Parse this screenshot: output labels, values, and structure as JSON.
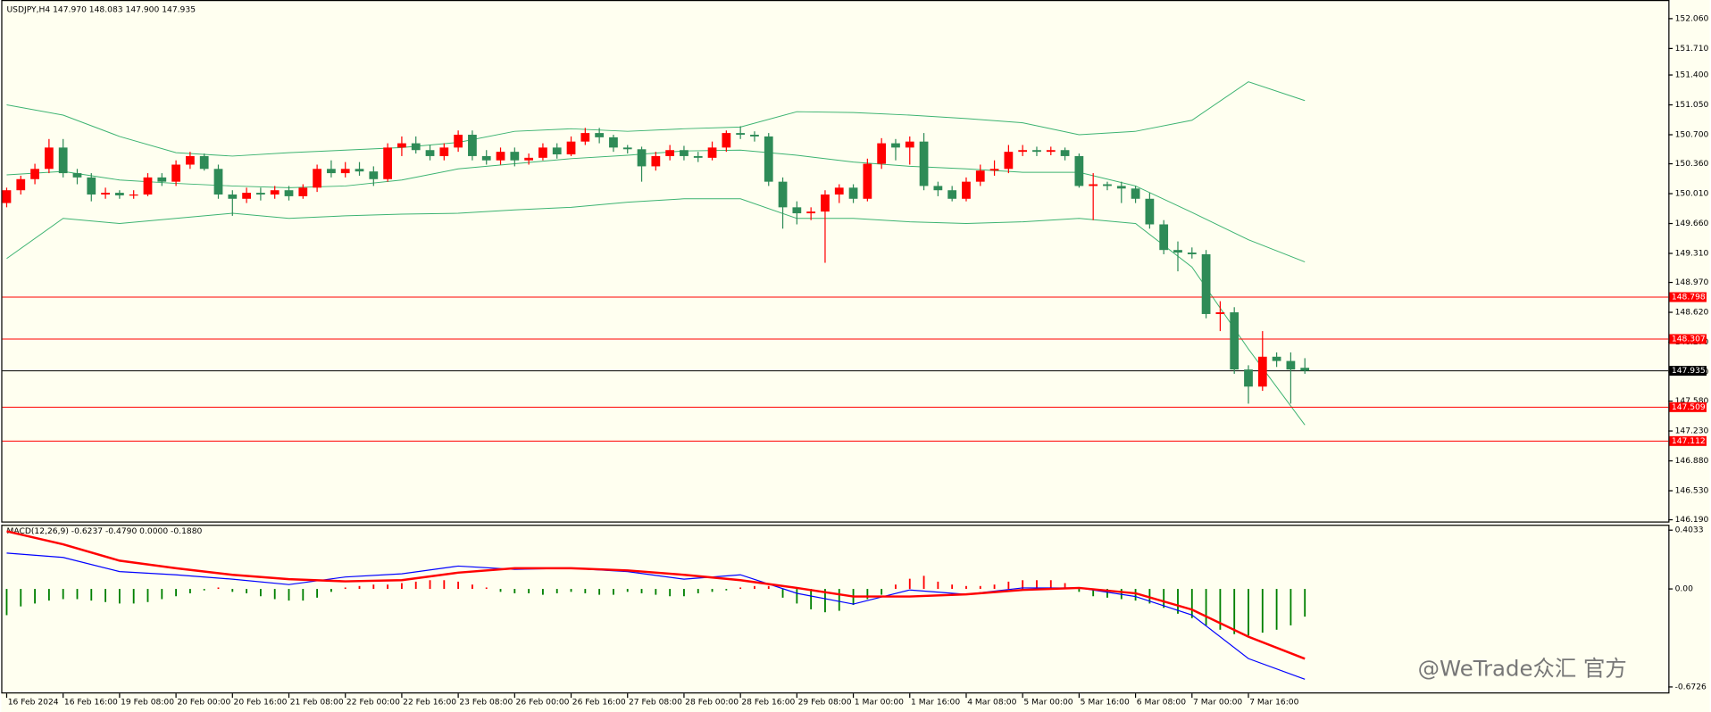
{
  "chart_data": {
    "type": "candlestick",
    "title": "USDJPY,H4  147.970 148.083 147.900 147.935",
    "up_color": "#ff0000",
    "down_color": "#2e8b57",
    "ylim": [
      146.17,
      152.24
    ],
    "yticks": [
      {
        "value": 152.06,
        "label": "152.060"
      },
      {
        "value": 151.71,
        "label": "151.710"
      },
      {
        "value": 151.4,
        "label": "151.400"
      },
      {
        "value": 151.05,
        "label": "151.050"
      },
      {
        "value": 150.7,
        "label": "150.700"
      },
      {
        "value": 150.36,
        "label": "150.360"
      },
      {
        "value": 150.01,
        "label": "150.010"
      },
      {
        "value": 149.66,
        "label": "149.660"
      },
      {
        "value": 149.31,
        "label": "149.310"
      },
      {
        "value": 148.97,
        "label": "148.970"
      },
      {
        "value": 148.62,
        "label": "148.620"
      },
      {
        "value": 148.27,
        "label": "148.270"
      },
      {
        "value": 147.92,
        "label": "147.920"
      },
      {
        "value": 147.58,
        "label": "147.580"
      },
      {
        "value": 147.23,
        "label": "147.230"
      },
      {
        "value": 146.88,
        "label": "146.880"
      },
      {
        "value": 146.53,
        "label": "146.530"
      },
      {
        "value": 146.19,
        "label": "146.190"
      }
    ],
    "x_labels": [
      "16 Feb 2024",
      "16 Feb 16:00",
      "19 Feb 08:00",
      "20 Feb 00:00",
      "20 Feb 16:00",
      "21 Feb 08:00",
      "22 Feb 00:00",
      "22 Feb 16:00",
      "23 Feb 08:00",
      "26 Feb 00:00",
      "26 Feb 16:00",
      "27 Feb 08:00",
      "28 Feb 00:00",
      "28 Feb 16:00",
      "29 Feb 08:00",
      "1 Mar 00:00",
      "1 Mar 16:00",
      "4 Mar 08:00",
      "5 Mar 00:00",
      "5 Mar 16:00",
      "6 Mar 08:00",
      "7 Mar 00:00",
      "7 Mar 16:00"
    ],
    "ohlc": [
      [
        149.9,
        150.08,
        149.85,
        150.05
      ],
      [
        150.05,
        150.22,
        150.0,
        150.18
      ],
      [
        150.18,
        150.36,
        150.12,
        150.3
      ],
      [
        150.3,
        150.65,
        150.25,
        150.55
      ],
      [
        150.55,
        150.65,
        150.2,
        150.25
      ],
      [
        150.25,
        150.3,
        150.12,
        150.2
      ],
      [
        150.2,
        150.25,
        149.92,
        150.0
      ],
      [
        150.0,
        150.08,
        149.95,
        150.02
      ],
      [
        150.02,
        150.05,
        149.95,
        149.99
      ],
      [
        149.99,
        150.05,
        149.95,
        150.0
      ],
      [
        150.0,
        150.25,
        149.98,
        150.2
      ],
      [
        150.2,
        150.25,
        150.1,
        150.15
      ],
      [
        150.15,
        150.4,
        150.1,
        150.35
      ],
      [
        150.35,
        150.5,
        150.3,
        150.45
      ],
      [
        150.45,
        150.48,
        150.28,
        150.3
      ],
      [
        150.3,
        150.35,
        149.95,
        150.0
      ],
      [
        150.0,
        150.05,
        149.75,
        149.95
      ],
      [
        149.95,
        150.08,
        149.9,
        150.02
      ],
      [
        150.02,
        150.08,
        149.93,
        150.0
      ],
      [
        150.0,
        150.1,
        149.95,
        150.05
      ],
      [
        150.05,
        150.1,
        149.93,
        149.98
      ],
      [
        149.98,
        150.12,
        149.95,
        150.08
      ],
      [
        150.08,
        150.35,
        150.03,
        150.3
      ],
      [
        150.3,
        150.4,
        150.2,
        150.25
      ],
      [
        150.25,
        150.38,
        150.2,
        150.3
      ],
      [
        150.3,
        150.38,
        150.22,
        150.27
      ],
      [
        150.27,
        150.33,
        150.1,
        150.18
      ],
      [
        150.18,
        150.6,
        150.15,
        150.55
      ],
      [
        150.55,
        150.68,
        150.45,
        150.6
      ],
      [
        150.6,
        150.68,
        150.48,
        150.52
      ],
      [
        150.52,
        150.58,
        150.4,
        150.45
      ],
      [
        150.45,
        150.6,
        150.4,
        150.55
      ],
      [
        150.55,
        150.75,
        150.5,
        150.7
      ],
      [
        150.7,
        150.75,
        150.4,
        150.45
      ],
      [
        150.45,
        150.52,
        150.35,
        150.4
      ],
      [
        150.4,
        150.55,
        150.35,
        150.5
      ],
      [
        150.5,
        150.55,
        150.33,
        150.4
      ],
      [
        150.4,
        150.48,
        150.35,
        150.43
      ],
      [
        150.43,
        150.6,
        150.4,
        150.55
      ],
      [
        150.55,
        150.6,
        150.42,
        150.47
      ],
      [
        150.47,
        150.68,
        150.45,
        150.62
      ],
      [
        150.62,
        150.78,
        150.58,
        150.72
      ],
      [
        150.72,
        150.78,
        150.6,
        150.67
      ],
      [
        150.67,
        150.7,
        150.5,
        150.55
      ],
      [
        150.55,
        150.58,
        150.48,
        150.53
      ],
      [
        150.53,
        150.56,
        150.15,
        150.33
      ],
      [
        150.33,
        150.5,
        150.28,
        150.45
      ],
      [
        150.45,
        150.58,
        150.4,
        150.52
      ],
      [
        150.52,
        150.57,
        150.4,
        150.45
      ],
      [
        150.45,
        150.5,
        150.38,
        150.43
      ],
      [
        150.43,
        150.62,
        150.4,
        150.55
      ],
      [
        150.55,
        150.75,
        150.5,
        150.72
      ],
      [
        150.72,
        150.8,
        150.65,
        150.7
      ],
      [
        150.7,
        150.74,
        150.62,
        150.68
      ],
      [
        150.68,
        150.72,
        150.1,
        150.15
      ],
      [
        150.15,
        150.2,
        149.6,
        149.85
      ],
      [
        149.85,
        149.92,
        149.65,
        149.78
      ],
      [
        149.78,
        149.85,
        149.7,
        149.8
      ],
      [
        149.8,
        150.05,
        149.2,
        150.0
      ],
      [
        150.0,
        150.12,
        149.9,
        150.08
      ],
      [
        150.08,
        150.12,
        149.9,
        149.95
      ],
      [
        149.95,
        150.42,
        149.92,
        150.36
      ],
      [
        150.36,
        150.66,
        150.3,
        150.6
      ],
      [
        150.6,
        150.65,
        150.4,
        150.55
      ],
      [
        150.55,
        150.68,
        150.35,
        150.62
      ],
      [
        150.62,
        150.72,
        150.05,
        150.1
      ],
      [
        150.1,
        150.15,
        149.98,
        150.05
      ],
      [
        150.05,
        150.1,
        149.92,
        149.95
      ],
      [
        149.95,
        150.2,
        149.92,
        150.15
      ],
      [
        150.15,
        150.35,
        150.1,
        150.28
      ],
      [
        150.28,
        150.4,
        150.22,
        150.3
      ],
      [
        150.3,
        150.58,
        150.25,
        150.5
      ],
      [
        150.5,
        150.58,
        150.45,
        150.52
      ],
      [
        150.52,
        150.56,
        150.45,
        150.5
      ],
      [
        150.5,
        150.56,
        150.46,
        150.52
      ],
      [
        150.52,
        150.55,
        150.4,
        150.45
      ],
      [
        150.45,
        150.48,
        150.08,
        150.1
      ],
      [
        150.1,
        150.25,
        149.7,
        150.12
      ],
      [
        150.12,
        150.15,
        150.05,
        150.1
      ],
      [
        150.1,
        150.15,
        149.9,
        150.07
      ],
      [
        150.07,
        150.1,
        149.9,
        149.95
      ],
      [
        149.95,
        150.02,
        149.6,
        149.65
      ],
      [
        149.65,
        149.7,
        149.3,
        149.35
      ],
      [
        149.35,
        149.45,
        149.1,
        149.32
      ],
      [
        149.32,
        149.38,
        149.25,
        149.3
      ],
      [
        149.3,
        149.35,
        148.55,
        148.6
      ],
      [
        148.6,
        148.75,
        148.4,
        148.62
      ],
      [
        148.62,
        148.68,
        147.9,
        147.95
      ],
      [
        147.95,
        148.0,
        147.55,
        147.75
      ],
      [
        147.75,
        148.4,
        147.7,
        148.1
      ],
      [
        148.1,
        148.15,
        147.98,
        148.05
      ],
      [
        148.05,
        148.15,
        147.55,
        147.95
      ],
      [
        147.97,
        148.083,
        147.9,
        147.935
      ]
    ],
    "bands": {
      "color": "#3cb371",
      "index": [
        0,
        4,
        8,
        12,
        16,
        20,
        24,
        28,
        32,
        36,
        40,
        44,
        48,
        52,
        56,
        60,
        64,
        68,
        72,
        76,
        80,
        84,
        88,
        92
      ],
      "upper": [
        151.05,
        150.93,
        150.68,
        150.49,
        150.45,
        150.49,
        150.52,
        150.55,
        150.61,
        150.74,
        150.77,
        150.74,
        150.77,
        150.79,
        150.97,
        150.96,
        150.93,
        150.89,
        150.84,
        150.7,
        150.74,
        150.87,
        151.32,
        151.1
      ],
      "middle": [
        150.23,
        150.27,
        150.17,
        150.13,
        150.1,
        150.08,
        150.1,
        150.17,
        150.3,
        150.36,
        150.42,
        150.46,
        150.51,
        150.52,
        150.46,
        150.38,
        150.33,
        150.3,
        150.26,
        150.26,
        150.1,
        149.79,
        149.47,
        149.21
      ],
      "lower": [
        149.25,
        149.72,
        149.66,
        149.72,
        149.78,
        149.72,
        149.75,
        149.77,
        149.78,
        149.82,
        149.85,
        149.91,
        149.95,
        149.95,
        149.72,
        149.72,
        149.68,
        149.66,
        149.68,
        149.72,
        149.66,
        149.15,
        148.19,
        147.3
      ]
    },
    "levels": [
      {
        "value": 148.798,
        "color": "#ff0000"
      },
      {
        "value": 148.307,
        "color": "#ff0000"
      },
      {
        "value": 147.935,
        "color": "#000000"
      },
      {
        "value": 147.509,
        "color": "#ff0000"
      },
      {
        "value": 147.112,
        "color": "#ff0000"
      }
    ],
    "macd": {
      "title": "MACD(12,26,9) -0.6237 -0.4790 0.0000 -0.1880",
      "ylim": [
        -0.71,
        0.433
      ],
      "yticks": [
        0.4033,
        {
          "value": 0,
          "label": "0.00"
        },
        -0.6726
      ],
      "hist_up_color": "#ff0000",
      "hist_down_color": "#008000",
      "histogram": [
        -0.18,
        -0.12,
        -0.1,
        -0.08,
        -0.07,
        -0.07,
        -0.08,
        -0.09,
        -0.1,
        -0.1,
        -0.09,
        -0.07,
        -0.05,
        -0.03,
        -0.01,
        0.01,
        -0.02,
        -0.03,
        -0.05,
        -0.07,
        -0.08,
        -0.08,
        -0.06,
        -0.02,
        0.01,
        0.02,
        0.03,
        0.03,
        0.04,
        0.05,
        0.06,
        0.06,
        0.05,
        0.03,
        0.01,
        -0.02,
        -0.03,
        -0.03,
        -0.04,
        -0.03,
        -0.02,
        -0.03,
        -0.04,
        -0.04,
        -0.02,
        -0.03,
        -0.04,
        -0.05,
        -0.05,
        -0.03,
        -0.02,
        -0.01,
        0.01,
        0.02,
        0.02,
        -0.06,
        -0.1,
        -0.14,
        -0.16,
        -0.15,
        -0.11,
        -0.07,
        -0.04,
        0.03,
        0.07,
        0.09,
        0.05,
        0.03,
        0.02,
        0.02,
        0.03,
        0.05,
        0.06,
        0.06,
        0.06,
        0.04,
        -0.02,
        -0.05,
        -0.06,
        -0.07,
        -0.08,
        -0.1,
        -0.13,
        -0.17,
        -0.2,
        -0.25,
        -0.28,
        -0.31,
        -0.32,
        -0.3,
        -0.28,
        -0.25,
        -0.19
      ],
      "index": [
        0,
        4,
        8,
        12,
        16,
        20,
        24,
        28,
        32,
        36,
        40,
        44,
        48,
        52,
        56,
        60,
        64,
        68,
        72,
        76,
        80,
        84,
        88,
        92
      ],
      "main": {
        "color": "#0000ff",
        "values": [
          0.246,
          0.216,
          0.119,
          0.097,
          0.067,
          0.03,
          0.082,
          0.104,
          0.157,
          0.134,
          0.142,
          0.119,
          0.067,
          0.097,
          -0.03,
          -0.104,
          -0.007,
          -0.037,
          0.007,
          0.007,
          -0.052,
          -0.179,
          -0.478,
          -0.62
        ]
      },
      "signal": {
        "color": "#ff0000",
        "values": [
          0.396,
          0.306,
          0.194,
          0.142,
          0.097,
          0.067,
          0.052,
          0.06,
          0.112,
          0.142,
          0.142,
          0.127,
          0.097,
          0.06,
          0.007,
          -0.052,
          -0.052,
          -0.037,
          -0.007,
          0.007,
          -0.03,
          -0.142,
          -0.328,
          -0.479
        ]
      }
    },
    "watermark": "@WeTrade众汇 官方"
  }
}
